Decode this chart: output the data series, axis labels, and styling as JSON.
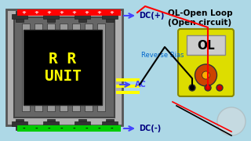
{
  "bg_color": "#add8e6",
  "title": "OL-Open Loop\n(Open circuit)",
  "title_color": "#000000",
  "rr_label": "R R\nUNIT",
  "rr_label_color": "#ffff00",
  "rr_box_color": "#000000",
  "dc_plus_label": "DC(+)",
  "dc_minus_label": "DC(-)",
  "ac_label": "AC",
  "reverse_bias_label": "Reverse Bias",
  "ol_display": "OL",
  "wire_red_color": "#ff0000",
  "wire_black_color": "#000000",
  "dc_plus_bar_color": "#ff0000",
  "dc_minus_bar_color": "#00cc00",
  "ac_bar_color": "#ffff00",
  "arrow_color": "#4444ff",
  "meter_body_color": "#dddd00",
  "meter_screen_color": "#cccccc",
  "frame_outer_color": "#555555",
  "frame_inner_color": "#888888",
  "figsize": [
    3.2,
    1.8
  ],
  "dpi": 100
}
